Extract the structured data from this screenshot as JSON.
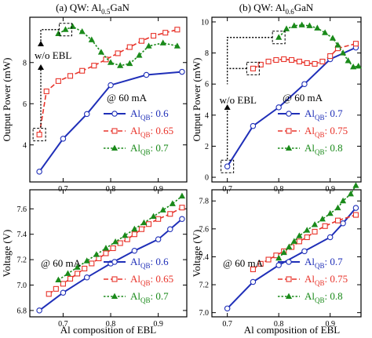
{
  "column_titles": [
    {
      "prefix": "(a) QW: Al",
      "sub": "0.5",
      "suffix": "GaN"
    },
    {
      "prefix": "(b) QW: Al",
      "sub": "0.6",
      "suffix": "GaN"
    }
  ],
  "xlabel": "Al composition of EBL",
  "colors": {
    "blue": "#1f2fb8",
    "red": "#e8332a",
    "green": "#1a8a1a",
    "annotation": "#000000"
  },
  "chart_data": [
    {
      "id": "a_power",
      "type": "line",
      "ylabel": "Output Power (mW)",
      "xlim": [
        0.63,
        0.96
      ],
      "ylim": [
        2.2,
        10.2
      ],
      "xticks": [
        0.7,
        0.8,
        0.9
      ],
      "yticks": [
        4,
        6,
        8
      ],
      "annotation_text": "@ 60 mA",
      "ebl_label": "w/o EBL",
      "legend_prefix": "Al",
      "legend_sub": "QB",
      "series": [
        {
          "legend": ": 0.6",
          "color": "blue",
          "style": "solid",
          "marker": "circle",
          "values": [
            2.7,
            4.3,
            5.5,
            6.9,
            7.4,
            7.55
          ]
        },
        {
          "legend": ": 0.65",
          "color": "red",
          "style": "dashed",
          "marker": "square",
          "values": [
            4.5,
            6.6,
            7.1,
            7.35,
            7.6,
            7.85,
            8.15,
            8.45,
            8.75,
            9.05,
            9.3,
            9.45,
            9.6
          ]
        },
        {
          "legend": ": 0.7",
          "color": "green",
          "style": "dotted",
          "marker": "triangle",
          "values": [
            9.4,
            9.6,
            9.75,
            9.5,
            9.1,
            8.5,
            8.0,
            7.85,
            7.95,
            8.35,
            8.8,
            8.95,
            8.8
          ]
        }
      ],
      "x_by_series": [
        [
          0.65,
          0.7,
          0.75,
          0.8,
          0.875,
          0.95
        ],
        [
          0.65,
          0.665,
          0.69,
          0.715,
          0.74,
          0.765,
          0.79,
          0.815,
          0.84,
          0.865,
          0.89,
          0.915,
          0.94
        ],
        [
          0.69,
          0.705,
          0.72,
          0.74,
          0.76,
          0.78,
          0.8,
          0.82,
          0.84,
          0.86,
          0.88,
          0.91,
          0.94
        ]
      ]
    },
    {
      "id": "b_power",
      "type": "line",
      "ylabel": "",
      "xlim": [
        0.67,
        0.96
      ],
      "ylim": [
        -0.3,
        10.3
      ],
      "xticks": [
        0.7,
        0.8,
        0.9
      ],
      "yticks": [
        0,
        2,
        4,
        6,
        8,
        10
      ],
      "annotation_text": "@ 60 mA",
      "ebl_label": "w/o EBL",
      "legend_prefix": "Al",
      "legend_sub": "QB",
      "series": [
        {
          "legend": ": 0.7",
          "color": "blue",
          "style": "solid",
          "marker": "circle",
          "values": [
            0.7,
            3.3,
            4.5,
            6.0,
            7.6,
            8.35
          ]
        },
        {
          "legend": ": 0.75",
          "color": "red",
          "style": "dashed",
          "marker": "square",
          "values": [
            7.0,
            7.25,
            7.45,
            7.55,
            7.6,
            7.55,
            7.45,
            7.35,
            7.3,
            7.45,
            7.8,
            8.3,
            8.6
          ]
        },
        {
          "legend": ": 0.8",
          "color": "green",
          "style": "dotted",
          "marker": "triangle",
          "values": [
            9.0,
            9.55,
            9.75,
            9.8,
            9.75,
            9.6,
            9.3,
            8.95,
            8.5,
            8.0,
            7.5,
            7.1,
            7.15
          ]
        }
      ],
      "x_by_series": [
        [
          0.7,
          0.75,
          0.8,
          0.85,
          0.9,
          0.95
        ],
        [
          0.75,
          0.765,
          0.78,
          0.795,
          0.81,
          0.825,
          0.84,
          0.855,
          0.87,
          0.885,
          0.9,
          0.915,
          0.95
        ],
        [
          0.8,
          0.815,
          0.83,
          0.845,
          0.86,
          0.875,
          0.89,
          0.905,
          0.915,
          0.925,
          0.935,
          0.945,
          0.955
        ]
      ]
    },
    {
      "id": "a_voltage",
      "type": "line",
      "ylabel": "Voltage (V)",
      "xlim": [
        0.63,
        0.96
      ],
      "ylim": [
        6.75,
        7.75
      ],
      "xticks": [
        0.7,
        0.8,
        0.9
      ],
      "yticks": [
        6.8,
        7.0,
        7.2,
        7.4,
        7.6
      ],
      "annotation_text": "@ 60 mA",
      "legend_prefix": "Al",
      "legend_sub": "QB",
      "series": [
        {
          "legend": ": 0.6",
          "color": "blue",
          "style": "solid",
          "marker": "circle",
          "values": [
            6.8,
            6.94,
            7.06,
            7.17,
            7.27,
            7.36,
            7.44,
            7.52
          ]
        },
        {
          "legend": ": 0.65",
          "color": "red",
          "style": "dashed",
          "marker": "square",
          "values": [
            6.93,
            6.97,
            7.01,
            7.05,
            7.09,
            7.13,
            7.17,
            7.21,
            7.25,
            7.29,
            7.33,
            7.36,
            7.4,
            7.44,
            7.48,
            7.52,
            7.56,
            7.61
          ]
        },
        {
          "legend": ": 0.7",
          "color": "green",
          "style": "dotted",
          "marker": "triangle",
          "values": [
            7.04,
            7.09,
            7.14,
            7.19,
            7.24,
            7.29,
            7.34,
            7.39,
            7.44,
            7.49,
            7.54,
            7.59,
            7.64,
            7.7
          ]
        }
      ],
      "x_by_series": [
        [
          0.65,
          0.7,
          0.75,
          0.8,
          0.85,
          0.9,
          0.925,
          0.95
        ],
        [
          0.67,
          0.685,
          0.7,
          0.715,
          0.73,
          0.745,
          0.76,
          0.775,
          0.79,
          0.805,
          0.82,
          0.835,
          0.85,
          0.865,
          0.88,
          0.9,
          0.925,
          0.95
        ],
        [
          0.69,
          0.71,
          0.73,
          0.75,
          0.77,
          0.79,
          0.81,
          0.83,
          0.85,
          0.87,
          0.89,
          0.91,
          0.93,
          0.95
        ]
      ]
    },
    {
      "id": "b_voltage",
      "type": "line",
      "ylabel": "",
      "xlim": [
        0.67,
        0.96
      ],
      "ylim": [
        6.97,
        7.88
      ],
      "xticks": [
        0.7,
        0.8,
        0.9
      ],
      "yticks": [
        7.0,
        7.2,
        7.4,
        7.6,
        7.8
      ],
      "annotation_text": "@ 60 mA",
      "legend_prefix": "Al",
      "legend_sub": "QB",
      "series": [
        {
          "legend": ": 0.7",
          "color": "blue",
          "style": "solid",
          "marker": "circle",
          "values": [
            7.03,
            7.22,
            7.34,
            7.44,
            7.54,
            7.64,
            7.75
          ]
        },
        {
          "legend": ": 0.75",
          "color": "red",
          "style": "dashed",
          "marker": "square",
          "values": [
            7.31,
            7.35,
            7.38,
            7.41,
            7.44,
            7.47,
            7.51,
            7.54,
            7.58,
            7.62,
            7.66,
            7.7
          ]
        },
        {
          "legend": ": 0.8",
          "color": "green",
          "style": "dotted",
          "marker": "triangle",
          "values": [
            7.39,
            7.43,
            7.47,
            7.51,
            7.55,
            7.59,
            7.63,
            7.67,
            7.71,
            7.75,
            7.8,
            7.85,
            7.91
          ]
        }
      ],
      "x_by_series": [
        [
          0.7,
          0.75,
          0.8,
          0.85,
          0.9,
          0.925,
          0.95
        ],
        [
          0.75,
          0.765,
          0.78,
          0.795,
          0.81,
          0.825,
          0.84,
          0.855,
          0.87,
          0.89,
          0.915,
          0.95
        ],
        [
          0.8,
          0.81,
          0.82,
          0.83,
          0.84,
          0.855,
          0.87,
          0.885,
          0.9,
          0.915,
          0.925,
          0.94,
          0.95
        ]
      ]
    }
  ]
}
